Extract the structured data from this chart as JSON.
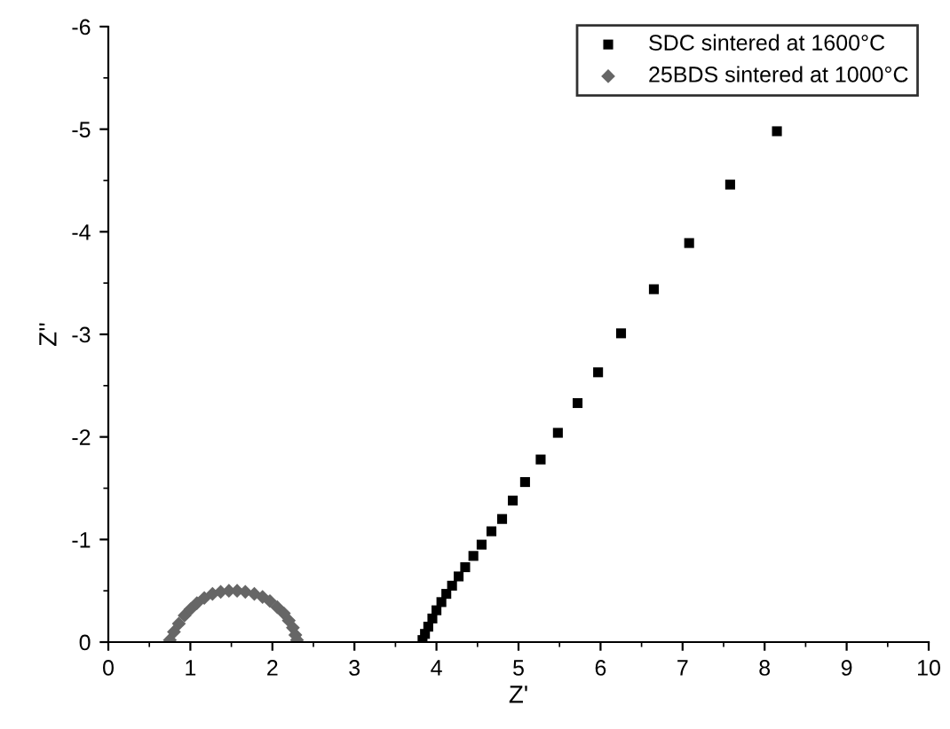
{
  "chart_data": {
    "type": "scatter",
    "xlabel": "Z'",
    "ylabel": "Z''",
    "xlim": [
      0,
      10
    ],
    "xticks": [
      0,
      1,
      2,
      3,
      4,
      5,
      6,
      7,
      8,
      9,
      10
    ],
    "ylim": [
      0,
      -6
    ],
    "yticks": [
      0,
      -1,
      -2,
      -3,
      -4,
      -5,
      -6
    ],
    "legend": "top right",
    "grid": false,
    "series": [
      {
        "name": "SDC sintered at 1600°C",
        "color": "#000000",
        "marker": "square",
        "x": [
          8.15,
          7.58,
          7.08,
          6.65,
          6.25,
          5.97,
          5.72,
          5.48,
          5.27,
          5.08,
          4.93,
          4.8,
          4.67,
          4.55,
          4.45,
          4.35,
          4.27,
          4.19,
          4.12,
          4.06,
          4.0,
          3.95,
          3.9,
          3.86,
          3.83
        ],
        "values": [
          -4.98,
          -4.46,
          -3.89,
          -3.44,
          -3.01,
          -2.63,
          -2.33,
          -2.04,
          -1.78,
          -1.56,
          -1.38,
          -1.2,
          -1.08,
          -0.95,
          -0.84,
          -0.73,
          -0.64,
          -0.55,
          -0.47,
          -0.39,
          -0.31,
          -0.23,
          -0.15,
          -0.08,
          -0.02
        ]
      },
      {
        "name": "25BDS sintered at 1000°C",
        "color": "#666666",
        "marker": "diamond",
        "x": [
          0.75,
          0.8,
          0.86,
          0.93,
          1.0,
          1.08,
          1.17,
          1.27,
          1.37,
          1.47,
          1.57,
          1.67,
          1.78,
          1.88,
          1.97,
          2.06,
          2.14,
          2.2,
          2.25,
          2.28,
          2.3
        ],
        "values": [
          -0.02,
          -0.1,
          -0.18,
          -0.26,
          -0.32,
          -0.38,
          -0.43,
          -0.47,
          -0.49,
          -0.5,
          -0.5,
          -0.49,
          -0.47,
          -0.44,
          -0.4,
          -0.34,
          -0.28,
          -0.21,
          -0.14,
          -0.07,
          -0.02
        ]
      }
    ]
  }
}
